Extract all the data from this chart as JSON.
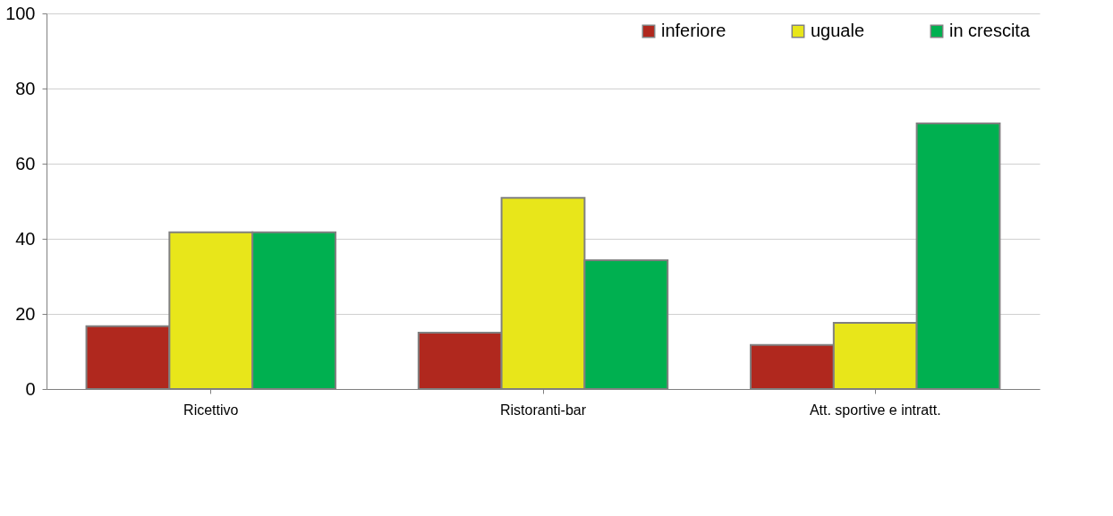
{
  "chart_data": {
    "type": "bar",
    "categories": [
      "Ricettivo",
      "Ristoranti-bar",
      "Att. sportive e intratt."
    ],
    "series": [
      {
        "name": "inferiore",
        "color": "#b0281e",
        "values": [
          16.7,
          15.0,
          11.7
        ]
      },
      {
        "name": "uguale",
        "color": "#e8e61a",
        "values": [
          41.7,
          50.9,
          17.6
        ]
      },
      {
        "name": "in crescita",
        "color": "#00b050",
        "values": [
          41.7,
          34.3,
          70.7
        ]
      }
    ],
    "ylim": [
      0,
      100
    ],
    "yticks": [
      0,
      20,
      40,
      60,
      80,
      100
    ],
    "grid": "y",
    "legend": "top right"
  }
}
